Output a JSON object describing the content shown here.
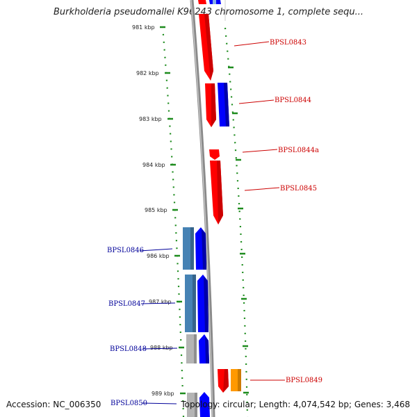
{
  "title": "Burkholderia pseudomallei K96243 chromosome 1, complete sequ...",
  "footer": {
    "accession": "Accession: NC_006350",
    "summary": "Topology: circular; Length: 4,074,542 bp; Genes: 3,468"
  },
  "colors": {
    "backbone": "#8a8a8a",
    "ticks": "#1e8c1e",
    "forward_gene": "#ff0000",
    "forward_gene_alt": "#ff9900",
    "reverse_gene": "#0000ff",
    "reverse_gene_light": "#4682b4",
    "pseudo_gene": "#b4b4b4",
    "forward_label": "#cc0000",
    "reverse_label": "#000099"
  },
  "ticks": [
    "981 kbp",
    "982 kbp",
    "983 kbp",
    "984 kbp",
    "985 kbp",
    "986 kbp",
    "987 kbp",
    "988 kbp",
    "989 kbp"
  ],
  "genes": [
    {
      "label": "BPSL0843",
      "strand": "forward"
    },
    {
      "label": "BPSL0844",
      "strand": "forward"
    },
    {
      "label": "BPSL0844a",
      "strand": "forward"
    },
    {
      "label": "BPSL0845",
      "strand": "forward"
    },
    {
      "label": "BPSL0846",
      "strand": "reverse"
    },
    {
      "label": "BPSL0847",
      "strand": "reverse"
    },
    {
      "label": "BPSL0848",
      "strand": "reverse"
    },
    {
      "label": "BPSL0849",
      "strand": "forward"
    },
    {
      "label": "BPSL0850",
      "strand": "reverse"
    }
  ]
}
